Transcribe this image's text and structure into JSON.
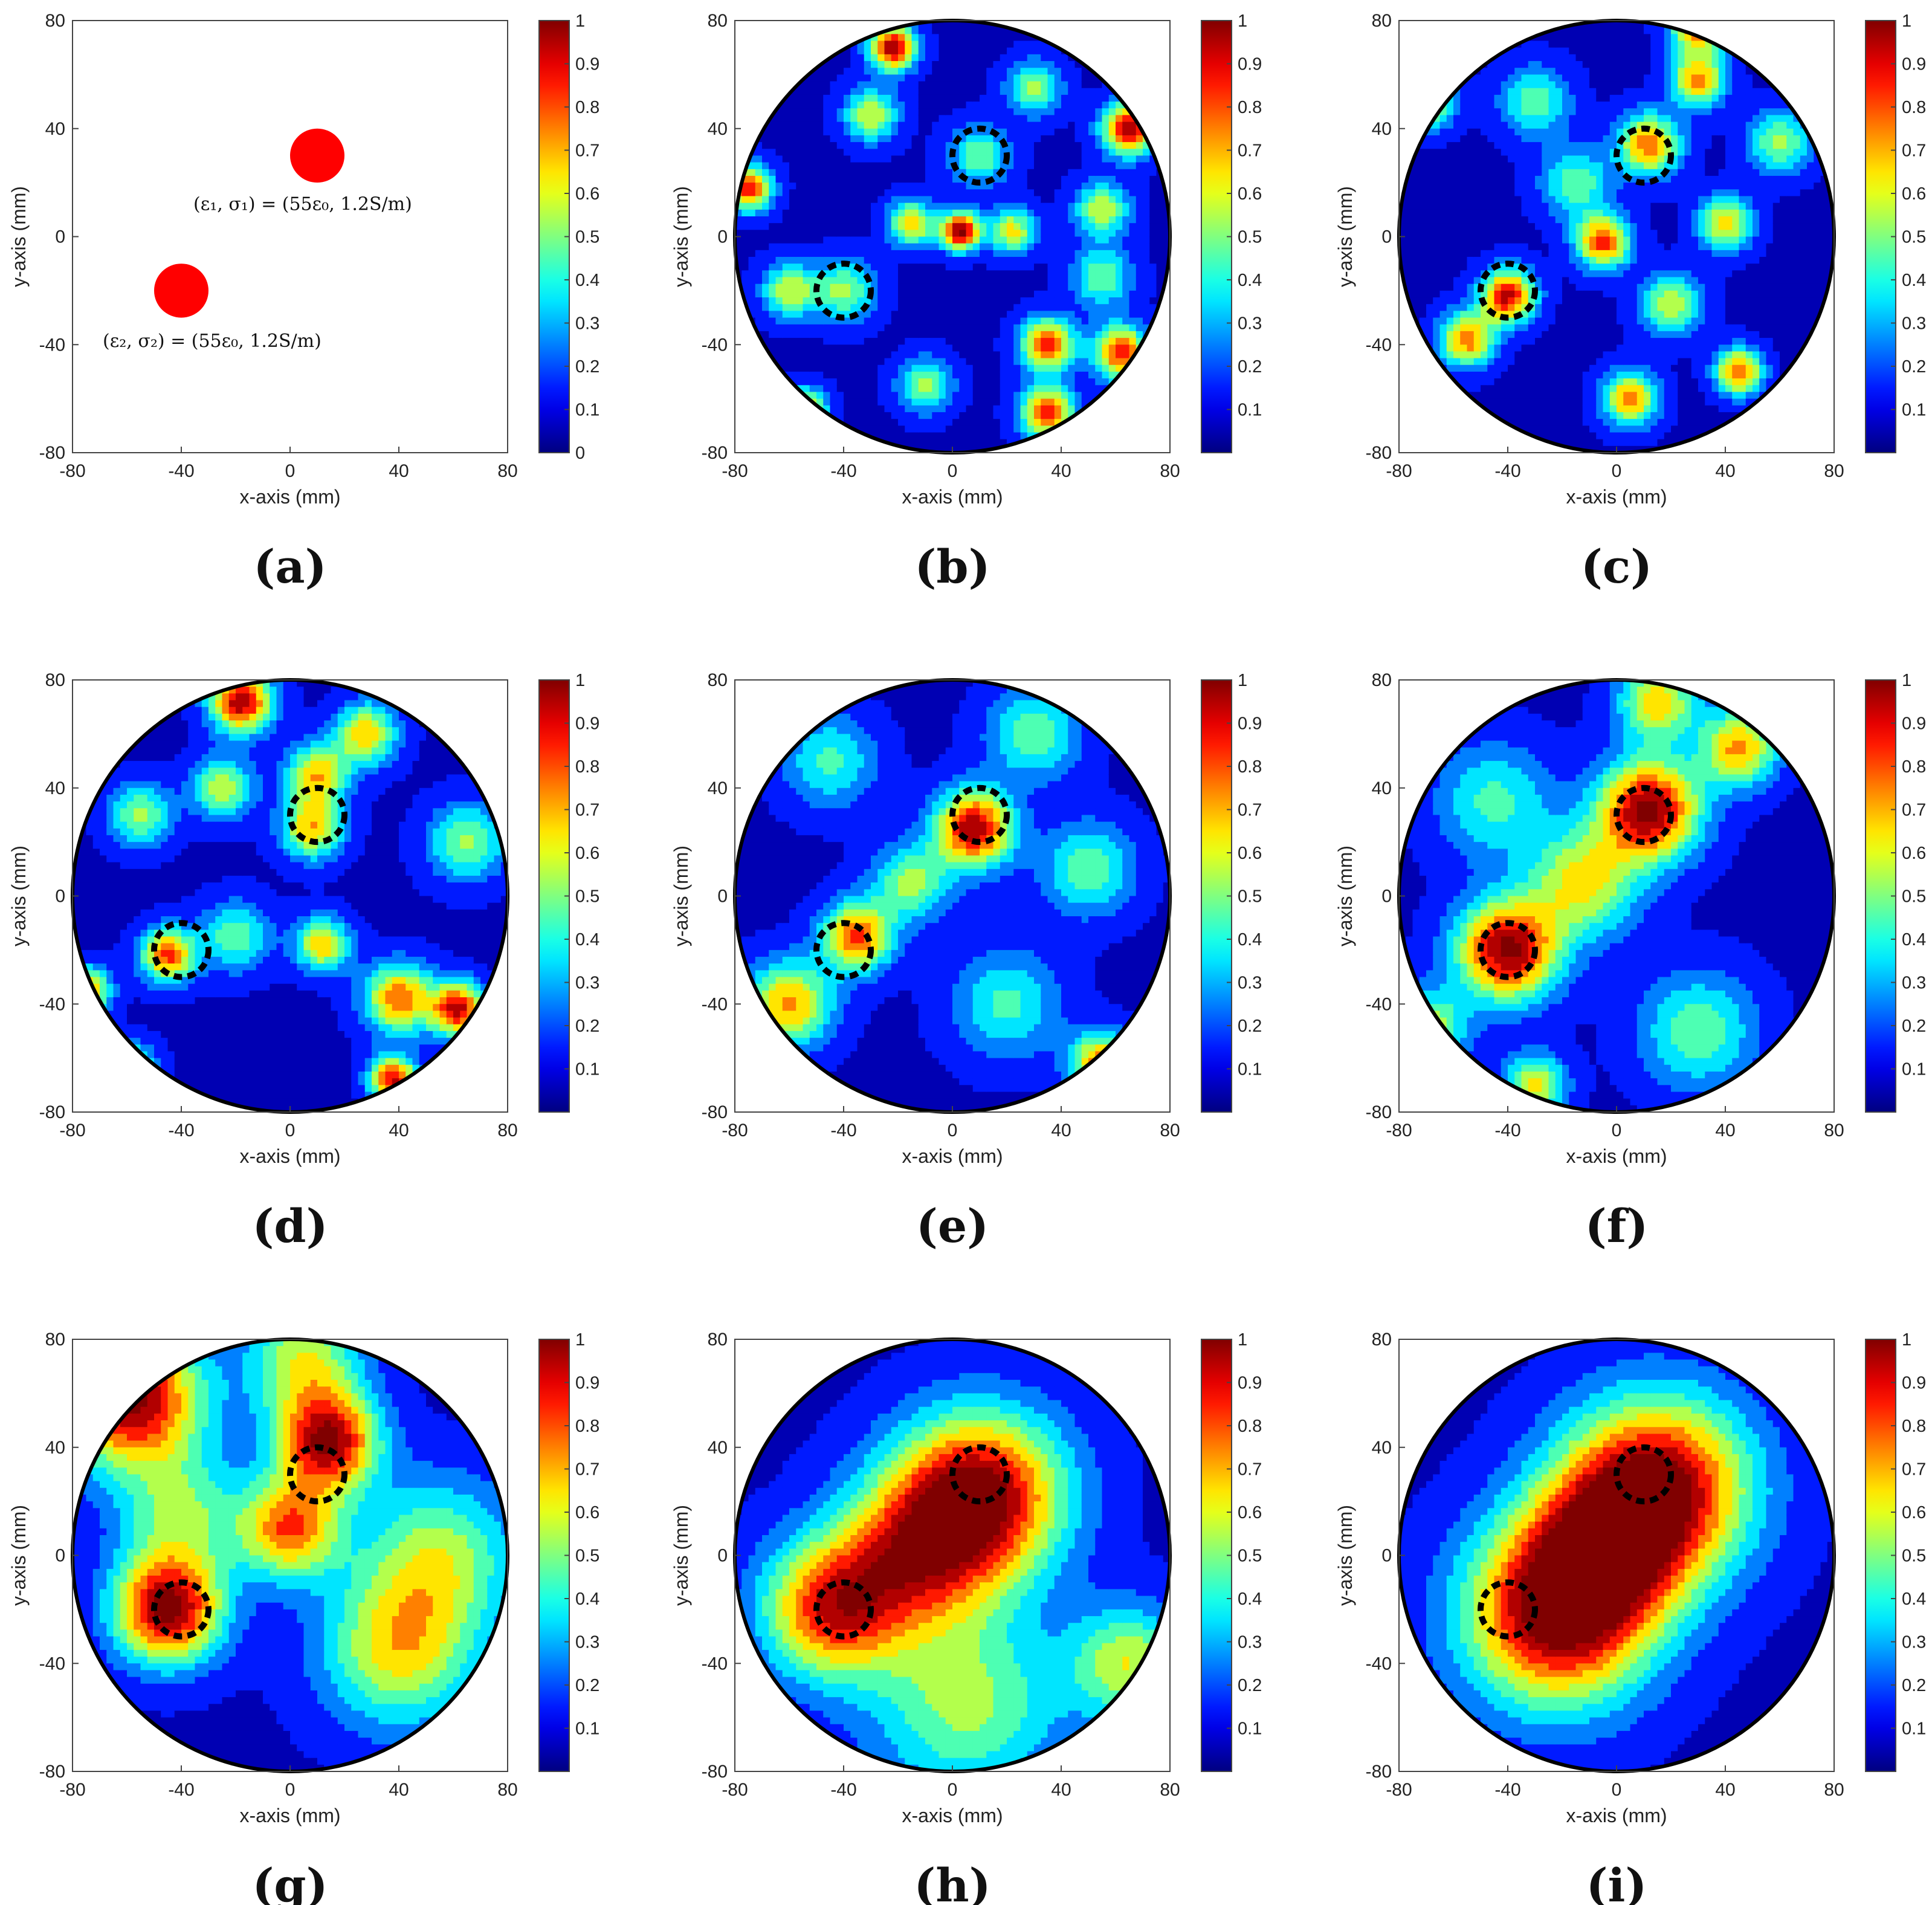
{
  "chart_data": [
    {
      "panel": "(a)",
      "type": "scatter",
      "xlabel": "x-axis (mm)",
      "ylabel": "y-axis (mm)",
      "xlim": [
        -80,
        80
      ],
      "ylim": [
        -80,
        80
      ],
      "xticks": [
        "-80",
        "-40",
        "0",
        "40",
        "80"
      ],
      "yticks": [
        "80",
        "40",
        "0",
        "-40",
        "-80"
      ],
      "colorbar": {
        "range": [
          0,
          1
        ],
        "ticks": [
          "1",
          "0.9",
          "0.8",
          "0.7",
          "0.6",
          "0.5",
          "0.4",
          "0.3",
          "0.2",
          "0.1",
          "0"
        ]
      },
      "objects": [
        {
          "x": 10,
          "y": 30,
          "radius": 10,
          "color": "#ff0000",
          "label": "(ε₁, σ₁) = (55ε₀, 1.2S/m)"
        },
        {
          "x": -40,
          "y": -20,
          "radius": 10,
          "color": "#ff0000",
          "label": "(ε₂, σ₂) = (55ε₀, 1.2S/m)"
        }
      ]
    },
    {
      "panel": "(b)",
      "type": "heatmap",
      "xlabel": "x-axis (mm)",
      "ylabel": "y-axis (mm)",
      "xlim": [
        -80,
        80
      ],
      "ylim": [
        -80,
        80
      ],
      "xticks": [
        "-80",
        "-40",
        "0",
        "40",
        "80"
      ],
      "yticks": [
        "80",
        "40",
        "0",
        "-40",
        "-80"
      ],
      "colorbar": {
        "range": [
          0,
          1
        ],
        "ticks": [
          "1",
          "0.9",
          "0.8",
          "0.7",
          "0.6",
          "0.5",
          "0.4",
          "0.3",
          "0.2",
          "0.1"
        ]
      },
      "domain_radius": 80,
      "true_targets": [
        {
          "x": 10,
          "y": 30,
          "r": 10
        },
        {
          "x": -40,
          "y": -20,
          "r": 10
        }
      ],
      "peaks": [
        {
          "x": 3,
          "y": 2,
          "amp": 0.95,
          "w": 5
        },
        {
          "x": -22,
          "y": 70,
          "amp": 0.9,
          "w": 6
        },
        {
          "x": 65,
          "y": 40,
          "amp": 0.85,
          "w": 7
        },
        {
          "x": 62,
          "y": -43,
          "amp": 0.8,
          "w": 7
        },
        {
          "x": 35,
          "y": -65,
          "amp": 0.75,
          "w": 7
        },
        {
          "x": 35,
          "y": -40,
          "amp": 0.75,
          "w": 7
        },
        {
          "x": -75,
          "y": 18,
          "amp": 0.8,
          "w": 6
        },
        {
          "x": -55,
          "y": -65,
          "amp": 0.7,
          "w": 6
        },
        {
          "x": -15,
          "y": 5,
          "amp": 0.6,
          "w": 6
        },
        {
          "x": 22,
          "y": 2,
          "amp": 0.55,
          "w": 6
        },
        {
          "x": -40,
          "y": -20,
          "amp": 0.45,
          "w": 8
        },
        {
          "x": 10,
          "y": 30,
          "amp": 0.4,
          "w": 8
        },
        {
          "x": 55,
          "y": 10,
          "amp": 0.5,
          "w": 7
        },
        {
          "x": -30,
          "y": 45,
          "amp": 0.5,
          "w": 7
        },
        {
          "x": -60,
          "y": -20,
          "amp": 0.5,
          "w": 7
        },
        {
          "x": 30,
          "y": 55,
          "amp": 0.45,
          "w": 7
        },
        {
          "x": -10,
          "y": -55,
          "amp": 0.45,
          "w": 7
        },
        {
          "x": 55,
          "y": -15,
          "amp": 0.4,
          "w": 8
        }
      ]
    },
    {
      "panel": "(c)",
      "type": "heatmap",
      "xlabel": "x-axis (mm)",
      "ylabel": "y-axis (mm)",
      "xlim": [
        -80,
        80
      ],
      "ylim": [
        -80,
        80
      ],
      "xticks": [
        "-80",
        "-40",
        "0",
        "40",
        "80"
      ],
      "yticks": [
        "80",
        "40",
        "0",
        "-40",
        "-80"
      ],
      "colorbar": {
        "range": [
          0,
          1
        ],
        "ticks": [
          "1",
          "0.9",
          "0.8",
          "0.7",
          "0.6",
          "0.5",
          "0.4",
          "0.3",
          "0.2",
          "0.1"
        ]
      },
      "domain_radius": 80,
      "true_targets": [
        {
          "x": 10,
          "y": 30,
          "r": 10
        },
        {
          "x": -40,
          "y": -20,
          "r": 10
        }
      ],
      "peaks": [
        {
          "x": -40,
          "y": -22,
          "amp": 0.85,
          "w": 7
        },
        {
          "x": 12,
          "y": 34,
          "amp": 0.7,
          "w": 8
        },
        {
          "x": -5,
          "y": -2,
          "amp": 0.75,
          "w": 7
        },
        {
          "x": 30,
          "y": 58,
          "amp": 0.65,
          "w": 7
        },
        {
          "x": 30,
          "y": 78,
          "amp": 0.75,
          "w": 7
        },
        {
          "x": -55,
          "y": -38,
          "amp": 0.7,
          "w": 7
        },
        {
          "x": 40,
          "y": 5,
          "amp": 0.6,
          "w": 7
        },
        {
          "x": 45,
          "y": -50,
          "amp": 0.75,
          "w": 6
        },
        {
          "x": 5,
          "y": -60,
          "amp": 0.7,
          "w": 7
        },
        {
          "x": -70,
          "y": 50,
          "amp": 0.6,
          "w": 7
        },
        {
          "x": -15,
          "y": 20,
          "amp": 0.4,
          "w": 9
        },
        {
          "x": -30,
          "y": 50,
          "amp": 0.4,
          "w": 9
        },
        {
          "x": 60,
          "y": 35,
          "amp": 0.45,
          "w": 8
        },
        {
          "x": 20,
          "y": -25,
          "amp": 0.5,
          "w": 8
        }
      ]
    },
    {
      "panel": "(d)",
      "type": "heatmap",
      "xlabel": "x-axis (mm)",
      "ylabel": "y-axis (mm)",
      "xlim": [
        -80,
        80
      ],
      "ylim": [
        -80,
        80
      ],
      "xticks": [
        "-80",
        "-40",
        "0",
        "40",
        "80"
      ],
      "yticks": [
        "80",
        "40",
        "0",
        "-40",
        "-80"
      ],
      "colorbar": {
        "range": [
          0,
          1
        ],
        "ticks": [
          "1",
          "0.9",
          "0.8",
          "0.7",
          "0.6",
          "0.5",
          "0.4",
          "0.3",
          "0.2",
          "0.1"
        ]
      },
      "domain_radius": 80,
      "true_targets": [
        {
          "x": 10,
          "y": 30,
          "r": 10
        },
        {
          "x": -40,
          "y": -20,
          "r": 10
        }
      ],
      "peaks": [
        {
          "x": -18,
          "y": 72,
          "amp": 0.9,
          "w": 8
        },
        {
          "x": 62,
          "y": -42,
          "amp": 0.85,
          "w": 7
        },
        {
          "x": 38,
          "y": -68,
          "amp": 0.85,
          "w": 6
        },
        {
          "x": 40,
          "y": -38,
          "amp": 0.7,
          "w": 9
        },
        {
          "x": -45,
          "y": -22,
          "amp": 0.75,
          "w": 7
        },
        {
          "x": 8,
          "y": 25,
          "amp": 0.6,
          "w": 8
        },
        {
          "x": 10,
          "y": 45,
          "amp": 0.6,
          "w": 8
        },
        {
          "x": 28,
          "y": 60,
          "amp": 0.6,
          "w": 8
        },
        {
          "x": -75,
          "y": -35,
          "amp": 0.7,
          "w": 6
        },
        {
          "x": -60,
          "y": -65,
          "amp": 0.6,
          "w": 7
        },
        {
          "x": 12,
          "y": -18,
          "amp": 0.6,
          "w": 7
        },
        {
          "x": -25,
          "y": 40,
          "amp": 0.5,
          "w": 8
        },
        {
          "x": -55,
          "y": 30,
          "amp": 0.45,
          "w": 8
        },
        {
          "x": 65,
          "y": 20,
          "amp": 0.45,
          "w": 10
        },
        {
          "x": -20,
          "y": -15,
          "amp": 0.4,
          "w": 9
        }
      ]
    },
    {
      "panel": "(e)",
      "type": "heatmap",
      "xlabel": "x-axis (mm)",
      "ylabel": "y-axis (mm)",
      "xlim": [
        -80,
        80
      ],
      "ylim": [
        -80,
        80
      ],
      "xticks": [
        "-80",
        "-40",
        "0",
        "40",
        "80"
      ],
      "yticks": [
        "80",
        "40",
        "0",
        "-40",
        "-80"
      ],
      "colorbar": {
        "range": [
          0,
          1
        ],
        "ticks": [
          "1",
          "0.9",
          "0.8",
          "0.7",
          "0.6",
          "0.5",
          "0.4",
          "0.3",
          "0.2",
          "0.1"
        ]
      },
      "domain_radius": 80,
      "true_targets": [
        {
          "x": 10,
          "y": 30,
          "r": 10
        },
        {
          "x": -40,
          "y": -20,
          "r": 10
        }
      ],
      "peaks": [
        {
          "x": 8,
          "y": 25,
          "amp": 0.9,
          "w": 10
        },
        {
          "x": -35,
          "y": -15,
          "amp": 0.75,
          "w": 9
        },
        {
          "x": -60,
          "y": -40,
          "amp": 0.65,
          "w": 11
        },
        {
          "x": 55,
          "y": -62,
          "amp": 0.7,
          "w": 8
        },
        {
          "x": -15,
          "y": 5,
          "amp": 0.45,
          "w": 10
        },
        {
          "x": 30,
          "y": 60,
          "amp": 0.4,
          "w": 12
        },
        {
          "x": -45,
          "y": 50,
          "amp": 0.35,
          "w": 12
        },
        {
          "x": 50,
          "y": 10,
          "amp": 0.4,
          "w": 12
        },
        {
          "x": 20,
          "y": -40,
          "amp": 0.35,
          "w": 14
        }
      ]
    },
    {
      "panel": "(f)",
      "type": "heatmap",
      "xlabel": "x-axis (mm)",
      "ylabel": "y-axis (mm)",
      "xlim": [
        -80,
        80
      ],
      "ylim": [
        -80,
        80
      ],
      "xticks": [
        "-80",
        "-40",
        "0",
        "40",
        "80"
      ],
      "yticks": [
        "80",
        "40",
        "0",
        "-40",
        "-80"
      ],
      "colorbar": {
        "range": [
          0,
          1
        ],
        "ticks": [
          "1",
          "0.9",
          "0.8",
          "0.7",
          "0.6",
          "0.5",
          "0.4",
          "0.3",
          "0.2",
          "0.1"
        ]
      },
      "domain_radius": 80,
      "true_targets": [
        {
          "x": 10,
          "y": 30,
          "r": 10
        },
        {
          "x": -40,
          "y": -20,
          "r": 10
        }
      ],
      "peaks": [
        {
          "x": 12,
          "y": 32,
          "amp": 0.95,
          "w": 13
        },
        {
          "x": -40,
          "y": -20,
          "amp": 0.95,
          "w": 13
        },
        {
          "x": -12,
          "y": 5,
          "amp": 0.55,
          "w": 14
        },
        {
          "x": 15,
          "y": 72,
          "amp": 0.6,
          "w": 10
        },
        {
          "x": 45,
          "y": 55,
          "amp": 0.65,
          "w": 10
        },
        {
          "x": -70,
          "y": -50,
          "amp": 0.55,
          "w": 10
        },
        {
          "x": 30,
          "y": -50,
          "amp": 0.4,
          "w": 15
        },
        {
          "x": -45,
          "y": 35,
          "amp": 0.35,
          "w": 15
        },
        {
          "x": -30,
          "y": -70,
          "amp": 0.55,
          "w": 8
        }
      ]
    },
    {
      "panel": "(g)",
      "type": "heatmap",
      "xlabel": "x-axis (mm)",
      "ylabel": "y-axis (mm)",
      "xlim": [
        -80,
        80
      ],
      "ylim": [
        -80,
        80
      ],
      "xticks": [
        "-80",
        "-40",
        "0",
        "40",
        "80"
      ],
      "yticks": [
        "80",
        "40",
        "0",
        "-40",
        "-80"
      ],
      "colorbar": {
        "range": [
          0,
          1
        ],
        "ticks": [
          "1",
          "0.9",
          "0.8",
          "0.7",
          "0.6",
          "0.5",
          "0.4",
          "0.3",
          "0.2",
          "0.1"
        ]
      },
      "domain_radius": 80,
      "true_targets": [
        {
          "x": 10,
          "y": 30,
          "r": 10
        },
        {
          "x": -40,
          "y": -20,
          "r": 10
        }
      ],
      "peaks": [
        {
          "x": -45,
          "y": -20,
          "amp": 0.95,
          "w": 14
        },
        {
          "x": -58,
          "y": 58,
          "amp": 0.95,
          "w": 18
        },
        {
          "x": 14,
          "y": 42,
          "amp": 0.9,
          "w": 13
        },
        {
          "x": 0,
          "y": 10,
          "amp": 0.7,
          "w": 13
        },
        {
          "x": 40,
          "y": -35,
          "amp": 0.55,
          "w": 20
        },
        {
          "x": 5,
          "y": 72,
          "amp": 0.5,
          "w": 15
        },
        {
          "x": 55,
          "y": 0,
          "amp": 0.45,
          "w": 20
        },
        {
          "x": -40,
          "y": 15,
          "amp": 0.4,
          "w": 16
        }
      ]
    },
    {
      "panel": "(h)",
      "type": "heatmap",
      "xlabel": "x-axis (mm)",
      "ylabel": "y-axis (mm)",
      "xlim": [
        -80,
        80
      ],
      "ylim": [
        -80,
        80
      ],
      "xticks": [
        "-80",
        "-40",
        "0",
        "40",
        "80"
      ],
      "yticks": [
        "80",
        "40",
        "0",
        "-40",
        "-80"
      ],
      "colorbar": {
        "range": [
          0,
          1
        ],
        "ticks": [
          "1",
          "0.9",
          "0.8",
          "0.7",
          "0.6",
          "0.5",
          "0.4",
          "0.3",
          "0.2",
          "0.1"
        ]
      },
      "domain_radius": 80,
      "true_targets": [
        {
          "x": 10,
          "y": 30,
          "r": 10
        },
        {
          "x": -40,
          "y": -20,
          "r": 10
        }
      ],
      "peaks": [
        {
          "x": 10,
          "y": 22,
          "amp": 0.95,
          "w": 22
        },
        {
          "x": -45,
          "y": -20,
          "amp": 0.75,
          "w": 18
        },
        {
          "x": -15,
          "y": 0,
          "amp": 0.6,
          "w": 20
        },
        {
          "x": 5,
          "y": -55,
          "amp": 0.45,
          "w": 25
        },
        {
          "x": 65,
          "y": -40,
          "amp": 0.5,
          "w": 15
        }
      ]
    },
    {
      "panel": "(i)",
      "type": "heatmap",
      "xlabel": "x-axis (mm)",
      "ylabel": "y-axis (mm)",
      "xlim": [
        -80,
        80
      ],
      "ylim": [
        -80,
        80
      ],
      "xticks": [
        "-80",
        "-40",
        "0",
        "40",
        "80"
      ],
      "yticks": [
        "80",
        "40",
        "0",
        "-40",
        "-80"
      ],
      "colorbar": {
        "range": [
          0,
          1
        ],
        "ticks": [
          "1",
          "0.9",
          "0.8",
          "0.7",
          "0.6",
          "0.5",
          "0.4",
          "0.3",
          "0.2",
          "0.1"
        ]
      },
      "domain_radius": 80,
      "true_targets": [
        {
          "x": 10,
          "y": 30,
          "r": 10
        },
        {
          "x": -40,
          "y": -20,
          "r": 10
        }
      ],
      "peaks": [
        {
          "x": 15,
          "y": 25,
          "amp": 0.95,
          "w": 24
        },
        {
          "x": -22,
          "y": -22,
          "amp": 0.95,
          "w": 24
        },
        {
          "x": -5,
          "y": 2,
          "amp": 0.55,
          "w": 20
        }
      ]
    }
  ]
}
